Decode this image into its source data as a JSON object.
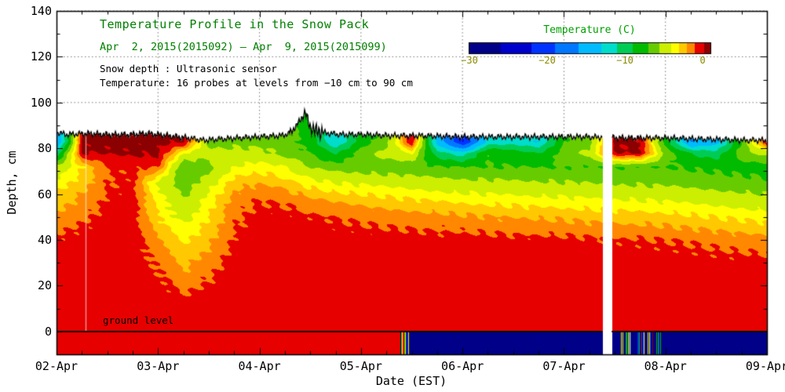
{
  "header": {
    "title": "Temperature Profile in the Snow Pack",
    "subtitle": "Apr  2, 2015(2015092) – Apr  9, 2015(2015099)",
    "info_line1": "Snow depth : Ultrasonic sensor",
    "info_line2": "Temperature: 16 probes at levels from −10 cm to 90 cm",
    "title_color": "#008000"
  },
  "axes": {
    "x_label": "Date (EST)",
    "y_label": "Depth, cm",
    "x_ticks": [
      "02-Apr",
      "03-Apr",
      "04-Apr",
      "05-Apr",
      "06-Apr",
      "07-Apr",
      "08-Apr",
      "09-Apr"
    ],
    "x_tick_values": [
      2,
      3,
      4,
      5,
      6,
      7,
      8,
      9
    ],
    "y_ticks": [
      0,
      20,
      40,
      60,
      80,
      100,
      120,
      140
    ]
  },
  "colorbar": {
    "title": "Temperature (C)",
    "ticks": [
      -30,
      -20,
      -10,
      0
    ],
    "tick_labels": [
      "−30",
      "−20",
      "−10",
      "0"
    ],
    "range": [
      -30,
      1
    ],
    "title_color": "#00a000",
    "tick_color": "#8a8a00"
  },
  "annotations": {
    "ground_level": "ground level"
  },
  "chart_data": {
    "type": "heatmap",
    "title": "Temperature Profile in the Snow Pack",
    "xlabel": "Date (EST)",
    "ylabel": "Depth, cm",
    "x_range_days_april_2015": [
      2,
      9
    ],
    "depth_range_cm": [
      -10,
      140
    ],
    "x_days_april_2015": [
      2,
      2.25,
      2.5,
      2.75,
      3,
      3.25,
      3.5,
      3.75,
      4,
      4.25,
      4.5,
      4.75,
      5,
      5.25,
      5.5,
      5.75,
      6,
      6.25,
      6.5,
      6.75,
      7,
      7.25,
      7.5,
      7.75,
      8,
      8.25,
      8.5,
      8.75,
      9
    ],
    "depths_cm": [
      0,
      10,
      20,
      30,
      40,
      50,
      58,
      65,
      72,
      78,
      83,
      88
    ],
    "temperature_c": [
      [
        -0.15,
        -0.15,
        -0.15,
        -0.15,
        -0.15,
        -0.15,
        -0.15,
        -0.15,
        -0.15,
        -0.15,
        -0.15,
        -0.15,
        -0.15,
        -0.15,
        -0.15,
        -0.15,
        -0.15,
        -0.15,
        -0.15,
        -0.15,
        -0.15,
        -0.15,
        -0.15,
        -0.15,
        -0.15,
        -0.15,
        -0.15,
        -0.15,
        -0.15
      ],
      [
        -0.2,
        -0.2,
        -0.2,
        -0.2,
        -0.3,
        -0.5,
        -0.3,
        -0.2,
        -0.2,
        -0.2,
        -0.2,
        -0.2,
        -0.2,
        -0.2,
        -0.2,
        -0.2,
        -0.2,
        -0.2,
        -0.2,
        -0.2,
        -0.2,
        -0.2,
        -0.2,
        -0.2,
        -0.2,
        -0.2,
        -0.2,
        -0.2,
        -0.2
      ],
      [
        -0.25,
        -0.25,
        -0.25,
        -0.25,
        -0.6,
        -1.3,
        -0.8,
        -0.3,
        -0.25,
        -0.25,
        -0.25,
        -0.25,
        -0.25,
        -0.25,
        -0.25,
        -0.25,
        -0.25,
        -0.25,
        -0.25,
        -0.25,
        -0.25,
        -0.25,
        -0.25,
        -0.25,
        -0.3,
        -0.3,
        -0.3,
        -0.3,
        -0.3
      ],
      [
        -0.3,
        -0.3,
        -0.3,
        -0.3,
        -1.2,
        -2.3,
        -1.5,
        -0.5,
        -0.3,
        -0.3,
        -0.3,
        -0.3,
        -0.3,
        -0.3,
        -0.3,
        -0.3,
        -0.35,
        -0.35,
        -0.4,
        -0.4,
        -0.4,
        -0.45,
        -0.45,
        -0.5,
        -0.5,
        -0.55,
        -0.6,
        -0.6,
        -0.65
      ],
      [
        -0.8,
        -0.5,
        -0.35,
        -0.35,
        -2,
        -3.2,
        -2.2,
        -0.8,
        -0.4,
        -0.4,
        -0.45,
        -0.5,
        -0.5,
        -0.55,
        -0.55,
        -0.6,
        -0.6,
        -0.65,
        -0.7,
        -0.7,
        -0.75,
        -0.8,
        -0.85,
        -0.9,
        -1,
        -1.1,
        -1.3,
        -1.5,
        -1.6
      ],
      [
        -1.8,
        -1.2,
        -0.6,
        -0.45,
        -3,
        -4.5,
        -3,
        -1.2,
        -0.6,
        -0.65,
        -0.8,
        -1,
        -1.2,
        -1.4,
        -1.5,
        -1.6,
        -1.8,
        -1.9,
        -2,
        -2.1,
        -2.2,
        -2.3,
        -2.4,
        -2.5,
        -2.6,
        -2.8,
        -3,
        -3.2,
        -3.4
      ],
      [
        -2.5,
        -1.8,
        -0.8,
        -0.55,
        -3.5,
        -5.5,
        -3.5,
        -1.6,
        -1,
        -1.2,
        -1.8,
        -2.2,
        -2.5,
        -2.8,
        -3,
        -3.2,
        -3.4,
        -3.5,
        -3.6,
        -3.7,
        -3.8,
        -3.9,
        -4,
        -4.1,
        -4.2,
        -4.4,
        -4.6,
        -4.8,
        -5
      ],
      [
        -3.5,
        -2.5,
        -1,
        -0.7,
        -4.5,
        -6.5,
        -4.5,
        -2.5,
        -2,
        -2.5,
        -3.5,
        -4,
        -4.2,
        -4.4,
        -4.6,
        -4.8,
        -5,
        -5.1,
        -5.2,
        -5.3,
        -5.4,
        -5.5,
        -5.6,
        -5.7,
        -5.8,
        -6,
        -6.2,
        -6.4,
        -6.6
      ],
      [
        -5,
        -3,
        -1,
        -0.7,
        -1,
        -7,
        -6,
        -4,
        -3.5,
        -4,
        -5.5,
        -6,
        -6.2,
        -6.4,
        -6.6,
        -6.8,
        -7,
        -7,
        -7,
        -7,
        -7,
        -7,
        -7,
        -7,
        -7,
        -7.2,
        -7.4,
        -7.6,
        -7.8
      ],
      [
        -10,
        0.3,
        0.3,
        0.4,
        0.4,
        -4,
        -5,
        -5,
        -5,
        -6,
        -7,
        -9,
        -6,
        -5,
        -4,
        -10,
        -12,
        -7,
        -8,
        -9,
        -6,
        -5,
        0.2,
        0.3,
        -6,
        -9,
        -10,
        -6,
        -5
      ],
      [
        -16,
        0.5,
        0.5,
        0.5,
        0.5,
        0.4,
        -6,
        -6,
        -6,
        -6,
        -8,
        -13,
        -8,
        -6,
        0.3,
        -14,
        -22,
        -12,
        -12,
        -13,
        -7,
        -6,
        0.4,
        0.4,
        -8,
        -16,
        -14,
        -7,
        0.4
      ],
      [
        -16,
        0.5,
        0.5,
        0.5,
        0.5,
        0.4,
        -6,
        -6,
        -6,
        -6,
        -8,
        -13,
        -8,
        -6,
        0.3,
        -14,
        -22,
        -12,
        -12,
        -13,
        -7,
        -6,
        0.4,
        0.4,
        -8,
        -16,
        -14,
        -7,
        0.4
      ]
    ],
    "snow_surface": {
      "x": [
        2,
        2.1,
        2.3,
        2.5,
        2.7,
        2.9,
        3.1,
        3.3,
        3.45,
        3.6,
        3.8,
        4,
        4.2,
        4.3,
        4.4,
        4.45,
        4.5,
        4.6,
        4.8,
        5,
        5.3,
        5.6,
        6,
        6.4,
        6.8,
        7.2,
        7.6,
        8,
        8.4,
        8.8,
        9
      ],
      "depth_cm": [
        87,
        86,
        86.5,
        86,
        86,
        86.5,
        85.5,
        84.5,
        83.5,
        84,
        84.5,
        85,
        85.5,
        86.5,
        92,
        96,
        89,
        87,
        86,
        86,
        85.5,
        85.5,
        85,
        85,
        85,
        85,
        84.5,
        84.5,
        84,
        83.5,
        83.5
      ]
    },
    "ground_strip_segments": [
      {
        "x0": 2.0,
        "x1": 5.38,
        "t": -0.2,
        "noise": false
      },
      {
        "x0": 5.38,
        "x1": 5.47,
        "t": -0.2,
        "noise": true
      },
      {
        "x0": 5.47,
        "x1": 7.38,
        "t": -30,
        "noise": false
      },
      {
        "x0": 7.38,
        "x1": 7.47,
        "t": null,
        "noise": false
      },
      {
        "x0": 7.47,
        "x1": 7.55,
        "t": -30,
        "noise": false
      },
      {
        "x0": 7.55,
        "x1": 7.95,
        "t": -30,
        "noise": true
      },
      {
        "x0": 7.95,
        "x1": 9.0,
        "t": -30,
        "noise": false
      }
    ],
    "data_gap_x": [
      7.38,
      7.47
    ],
    "artifact_line_x": 2.29,
    "colormap_bands": [
      {
        "min": 0.2,
        "color": "#8b0000"
      },
      {
        "min": -1,
        "color": "#e60000"
      },
      {
        "min": -2,
        "color": "#ff8800"
      },
      {
        "min": -3,
        "color": "#ffc800"
      },
      {
        "min": -4,
        "color": "#ffff00"
      },
      {
        "min": -5.5,
        "color": "#ccee00"
      },
      {
        "min": -7,
        "color": "#66cc00"
      },
      {
        "min": -9,
        "color": "#00bb00"
      },
      {
        "min": -11,
        "color": "#00cc55"
      },
      {
        "min": -13,
        "color": "#00ddcc"
      },
      {
        "min": -16,
        "color": "#00bbff"
      },
      {
        "min": -19,
        "color": "#0077ff"
      },
      {
        "min": -22,
        "color": "#0033ff"
      },
      {
        "min": -26,
        "color": "#0000cc"
      },
      {
        "min": -30,
        "color": "#000088"
      },
      {
        "min": -99,
        "color": "#000044"
      }
    ]
  }
}
